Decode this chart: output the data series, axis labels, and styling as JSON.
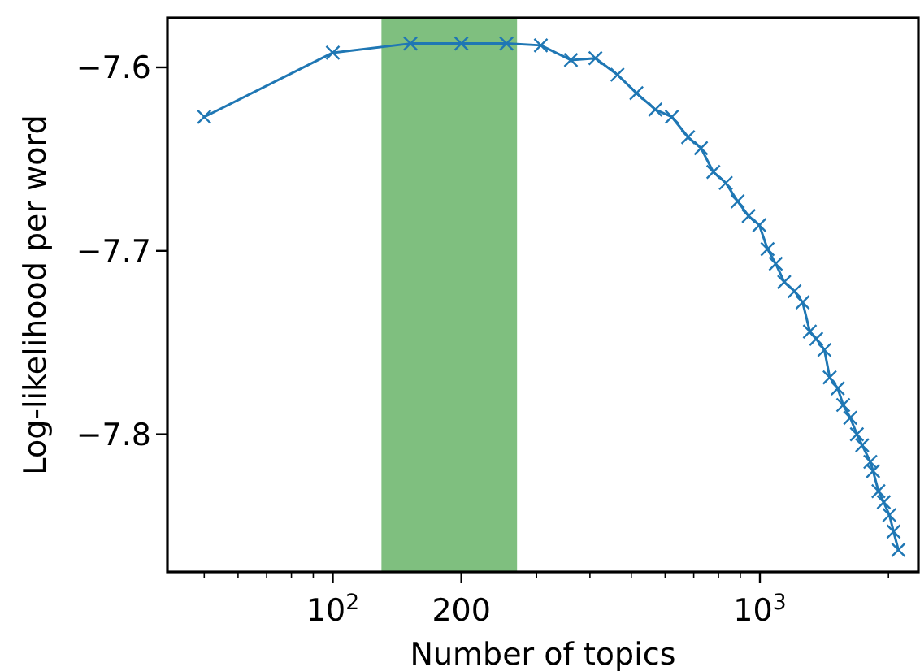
{
  "chart_data": {
    "type": "line",
    "xlabel": "Number of topics",
    "ylabel": "Log-likelihood per word",
    "log": "x",
    "grid": false,
    "marker": "cross",
    "line_style": "solid",
    "xlim": [
      41,
      2350
    ],
    "ylim": [
      -7.875,
      -7.573
    ],
    "xticks": [
      {
        "value": 50,
        "label": null
      },
      {
        "value": 60,
        "label": null
      },
      {
        "value": 70,
        "label": null
      },
      {
        "value": 80,
        "label": null
      },
      {
        "value": 90,
        "label": null
      },
      {
        "value": 100,
        "label": "10$^{2}$"
      },
      {
        "value": 200,
        "label": "200"
      },
      {
        "value": 300,
        "label": null
      },
      {
        "value": 400,
        "label": null
      },
      {
        "value": 500,
        "label": null
      },
      {
        "value": 600,
        "label": null
      },
      {
        "value": 700,
        "label": null
      },
      {
        "value": 800,
        "label": null
      },
      {
        "value": 900,
        "label": null
      },
      {
        "value": 1000,
        "label": "10$^{3}$"
      },
      {
        "value": 2000,
        "label": null
      }
    ],
    "yticks": [
      -7.8,
      -7.7,
      -7.6
    ],
    "bands": [
      {
        "axis": "x",
        "from": 130,
        "to": 270,
        "color": "#7fbf7f"
      }
    ],
    "series": [
      {
        "color": "#1f77b4",
        "x": [
          50,
          100,
          152,
          200,
          255,
          307,
          361,
          412,
          464,
          514,
          569,
          622,
          679,
          728,
          778,
          832,
          887,
          941,
          997,
          1042,
          1089,
          1140,
          1205,
          1259,
          1309,
          1355,
          1416,
          1457,
          1522,
          1567,
          1628,
          1687,
          1736,
          1814,
          1841,
          1895,
          1950,
          2010,
          2056,
          2110
        ],
        "values": [
          -7.627,
          -7.592,
          -7.587,
          -7.587,
          -7.587,
          -7.588,
          -7.596,
          -7.595,
          -7.604,
          -7.614,
          -7.623,
          -7.627,
          -7.638,
          -7.644,
          -7.657,
          -7.663,
          -7.673,
          -7.681,
          -7.686,
          -7.699,
          -7.707,
          -7.717,
          -7.722,
          -7.728,
          -7.744,
          -7.748,
          -7.754,
          -7.769,
          -7.775,
          -7.784,
          -7.791,
          -7.8,
          -7.806,
          -7.815,
          -7.82,
          -7.831,
          -7.837,
          -7.844,
          -7.853,
          -7.863
        ]
      }
    ]
  }
}
